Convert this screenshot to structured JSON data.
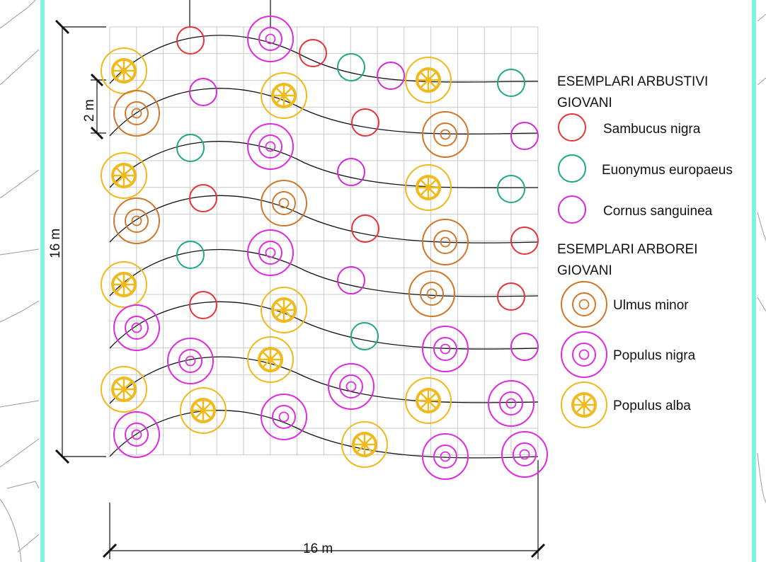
{
  "dimensions": {
    "width_label": "16  m",
    "height_label": "16  m",
    "spacing_label": "2  m"
  },
  "legend": {
    "shrubs_title_line1": "ESEMPLARI ARBUSTIVI",
    "shrubs_title_line2": "GIOVANI",
    "trees_title_line1": "ESEMPLARI ARBOREI",
    "trees_title_line2": "GIOVANI",
    "items": {
      "sambucus": "Sambucus nigra",
      "euonymus": "Euonymus europaeus",
      "cornus": "Cornus sanguinea",
      "ulmus": "Ulmus minor",
      "pnigra": "Populus nigra",
      "palba": "Populus alba"
    }
  },
  "colors": {
    "sambucus": "#e8323a",
    "euonymus": "#1fa882",
    "cornus": "#d629d6",
    "ulmus": "#d0772a",
    "pnigra": "#e02ae0",
    "palba": "#f0b91c",
    "frame": "#7ff5df",
    "grid": "#c9c9c9"
  },
  "plants": [
    {
      "species": "palba"
    },
    {
      "species": "sambucus"
    },
    {
      "species": "pnigra"
    },
    {
      "species": "sambucus"
    },
    {
      "species": "euonymus"
    },
    {
      "species": "cornus"
    },
    {
      "species": "palba"
    },
    {
      "species": "euonymus"
    },
    {
      "species": "ulmus"
    },
    {
      "species": "cornus"
    },
    {
      "species": "palba"
    },
    {
      "species": "sambucus"
    },
    {
      "species": "ulmus"
    },
    {
      "species": "cornus"
    },
    {
      "species": "palba"
    },
    {
      "species": "euonymus"
    },
    {
      "species": "pnigra"
    },
    {
      "species": "cornus"
    },
    {
      "species": "palba"
    },
    {
      "species": "euonymus"
    },
    {
      "species": "ulmus"
    },
    {
      "species": "sambucus"
    },
    {
      "species": "ulmus"
    },
    {
      "species": "sambucus"
    },
    {
      "species": "ulmus"
    },
    {
      "species": "sambucus"
    },
    {
      "species": "palba"
    },
    {
      "species": "euonymus"
    },
    {
      "species": "pnigra"
    },
    {
      "species": "cornus"
    },
    {
      "species": "ulmus"
    },
    {
      "species": "sambucus"
    },
    {
      "species": "pnigra"
    },
    {
      "species": "sambucus"
    },
    {
      "species": "palba"
    },
    {
      "species": "euonymus"
    },
    {
      "species": "pnigra"
    },
    {
      "species": "cornus"
    },
    {
      "species": "palba"
    },
    {
      "species": "pnigra"
    },
    {
      "species": "palba"
    },
    {
      "species": "pnigra"
    },
    {
      "species": "palba"
    },
    {
      "species": "pnigra"
    },
    {
      "species": "pnigra"
    },
    {
      "species": "palba"
    },
    {
      "species": "pnigra"
    },
    {
      "species": "palba"
    },
    {
      "species": "pnigra"
    },
    {
      "species": "pnigra"
    }
  ]
}
